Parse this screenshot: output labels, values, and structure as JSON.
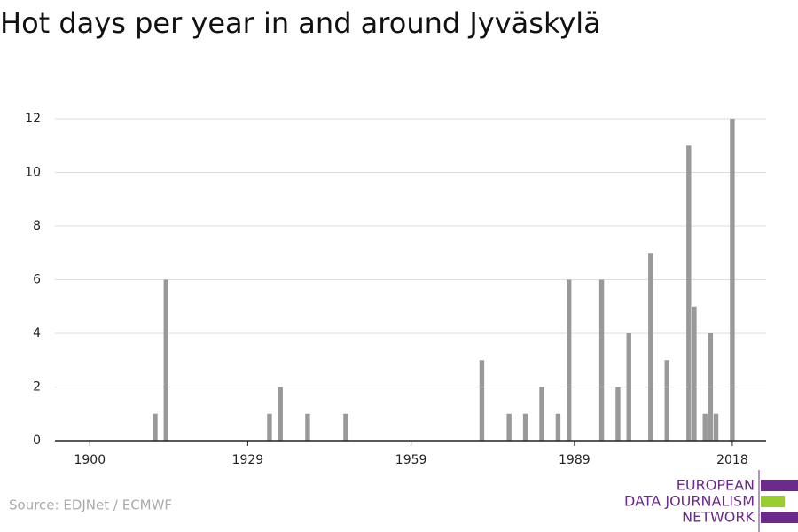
{
  "chart_data": {
    "type": "bar",
    "title": "Hot days per year in and around Jyväskylä",
    "source": "Source: EDJNet / ECMWF",
    "logo": [
      "EUROPEAN",
      "DATA JOURNALISM",
      "NETWORK"
    ],
    "x": [
      1912,
      1914,
      1933,
      1935,
      1940,
      1947,
      1972,
      1977,
      1980,
      1983,
      1986,
      1988,
      1994,
      1997,
      1999,
      2003,
      2006,
      2010,
      2011,
      2013,
      2014,
      2015,
      2018
    ],
    "values": [
      1,
      6,
      1,
      2,
      1,
      1,
      3,
      1,
      1,
      2,
      1,
      6,
      6,
      2,
      4,
      7,
      3,
      11,
      5,
      1,
      4,
      1,
      12
    ],
    "color": "#999999",
    "xlim": [
      1893.6,
      2024.2
    ],
    "xticks": [
      1900,
      1929,
      1959,
      1989,
      2018
    ],
    "ylim": [
      0,
      12
    ],
    "yticks": [
      0,
      2,
      4,
      6,
      8,
      10,
      12
    ],
    "grid": true
  }
}
